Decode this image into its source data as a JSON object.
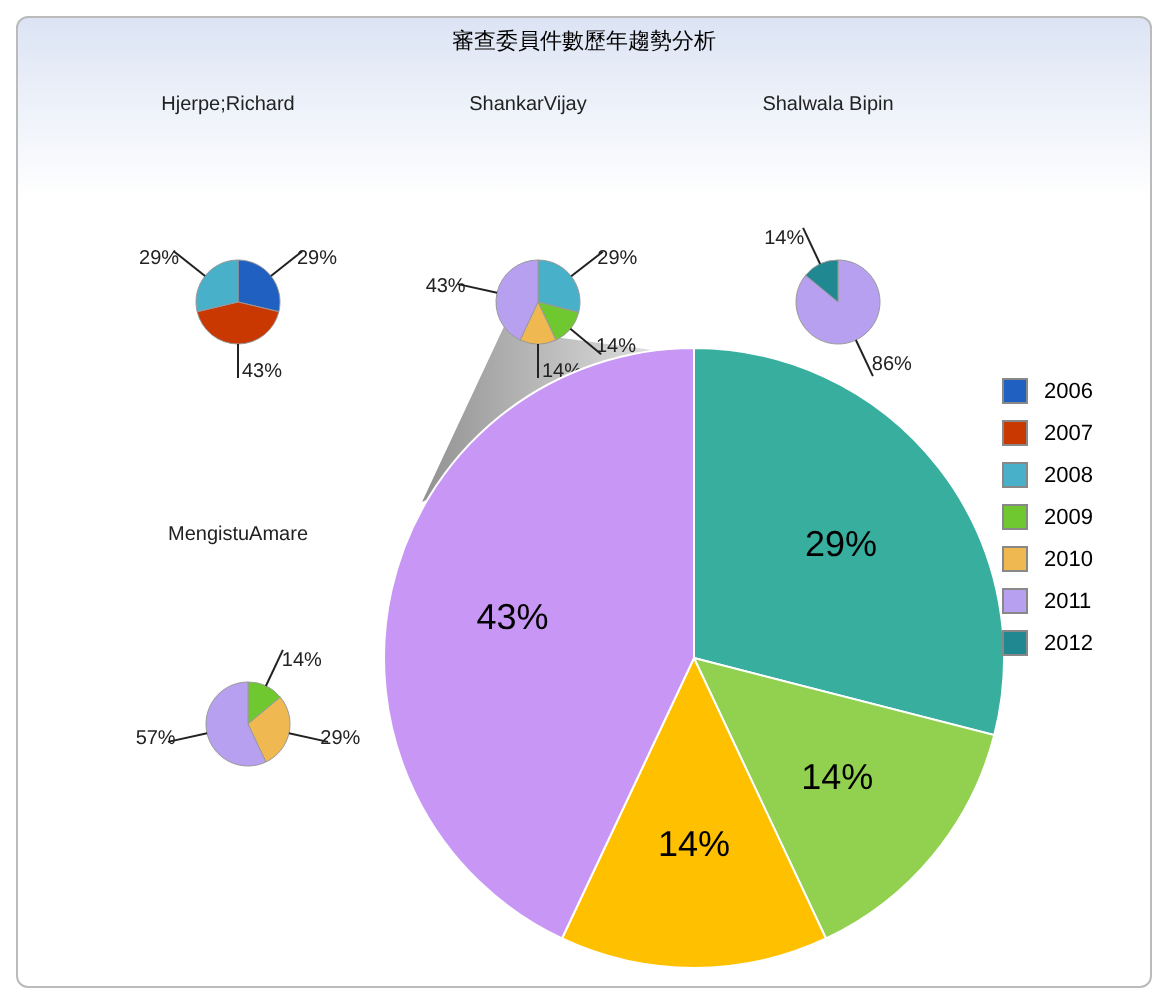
{
  "chart_data": [
    {
      "type": "pie",
      "title": "審查委員件數歷年趨勢分析",
      "subtitle": "Hjerpe;Richard",
      "legend": "right",
      "categories": [
        "2006",
        "2007",
        "2008",
        "2009",
        "2010",
        "2011",
        "2012"
      ],
      "values": [
        29,
        43,
        29,
        null,
        null,
        null,
        null
      ],
      "value_labels": [
        "29%",
        "43%",
        "29%",
        null,
        null,
        null,
        null
      ],
      "colors": [
        "#2060c0",
        "#c83800",
        "#48b0c8",
        "#70c830",
        "#f0b850",
        "#b8a0f0",
        "#208890"
      ]
    },
    {
      "type": "pie",
      "subtitle": "ShankarVijay",
      "categories": [
        null,
        null,
        null,
        null
      ],
      "values": [
        29,
        14,
        14,
        43
      ],
      "value_labels": [
        "29%",
        "14%",
        "14%",
        "43%"
      ],
      "colors": [
        "#48b0c8",
        "#70c830",
        "#f0b850",
        "#b8a0f0"
      ]
    },
    {
      "type": "pie",
      "subtitle": "Shalwala Bipin",
      "categories": [
        null,
        null
      ],
      "values": [
        86,
        14
      ],
      "value_labels": [
        "86%",
        "14%"
      ],
      "colors": [
        "#b8a0f0",
        "#208890"
      ]
    },
    {
      "type": "pie",
      "subtitle": "MengistuAmare",
      "categories": [
        null,
        null,
        null
      ],
      "values": [
        14,
        29,
        57
      ],
      "value_labels": [
        "14%",
        "29%",
        "57%"
      ],
      "colors": [
        "#70c830",
        "#f0b850",
        "#b8a0f0"
      ]
    },
    {
      "type": "pie",
      "categories": [
        null,
        null,
        null,
        null
      ],
      "values": [
        29,
        14,
        14,
        43
      ],
      "value_labels": [
        "29%",
        "14%",
        "14%",
        "43%"
      ],
      "colors": [
        "#38ae9f",
        "#92d050",
        "#ffc000",
        "#c896f4"
      ]
    }
  ]
}
